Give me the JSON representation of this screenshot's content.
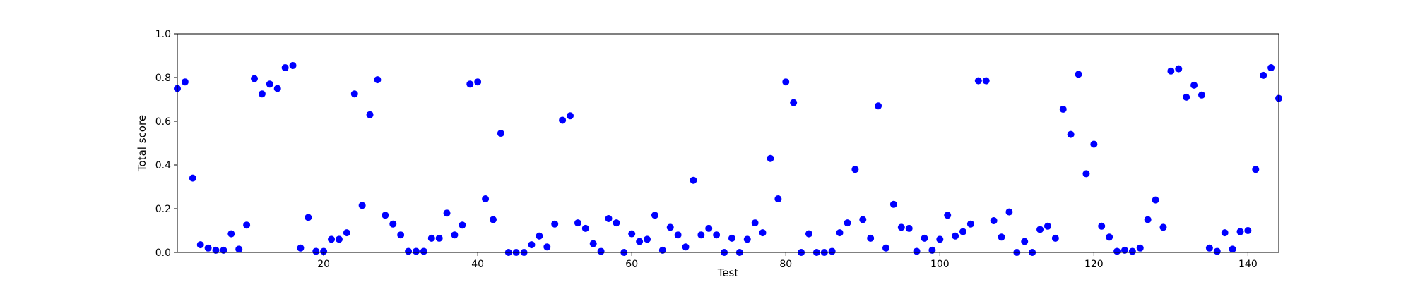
{
  "chart_data": {
    "type": "scatter",
    "title": "",
    "xlabel": "Test",
    "ylabel": "Total score",
    "xlim": [
      1,
      144
    ],
    "ylim": [
      0,
      1.0
    ],
    "x_ticks": [
      20,
      40,
      60,
      80,
      100,
      120,
      140
    ],
    "y_ticks": [
      0.0,
      0.2,
      0.4,
      0.6,
      0.8,
      1.0
    ],
    "x_tick_labels": [
      "20",
      "40",
      "60",
      "80",
      "100",
      "120",
      "140"
    ],
    "y_tick_labels": [
      "0.0",
      "0.2",
      "0.4",
      "0.6",
      "0.8",
      "1.0"
    ],
    "grid": false,
    "marker_color": "#0000ff",
    "x": [
      1,
      2,
      3,
      4,
      5,
      6,
      7,
      8,
      9,
      10,
      11,
      12,
      13,
      14,
      15,
      16,
      17,
      18,
      19,
      20,
      21,
      22,
      23,
      24,
      25,
      26,
      27,
      28,
      29,
      30,
      31,
      32,
      33,
      34,
      35,
      36,
      37,
      38,
      39,
      40,
      41,
      42,
      43,
      44,
      45,
      46,
      47,
      48,
      49,
      50,
      51,
      52,
      53,
      54,
      55,
      56,
      57,
      58,
      59,
      60,
      61,
      62,
      63,
      64,
      65,
      66,
      67,
      68,
      69,
      70,
      71,
      72,
      73,
      74,
      75,
      76,
      77,
      78,
      79,
      80,
      81,
      82,
      83,
      84,
      85,
      86,
      87,
      88,
      89,
      90,
      91,
      92,
      93,
      94,
      95,
      96,
      97,
      98,
      99,
      100,
      101,
      102,
      103,
      104,
      105,
      106,
      107,
      108,
      109,
      110,
      111,
      112,
      113,
      114,
      115,
      116,
      117,
      118,
      119,
      120,
      121,
      122,
      123,
      124,
      125,
      126,
      127,
      128,
      129,
      130,
      131,
      132,
      133,
      134,
      135,
      136,
      137,
      138,
      139,
      140,
      141,
      142,
      143,
      144
    ],
    "y": [
      0.75,
      0.78,
      0.34,
      0.035,
      0.02,
      0.01,
      0.01,
      0.085,
      0.015,
      0.125,
      0.795,
      0.725,
      0.77,
      0.75,
      0.845,
      0.855,
      0.02,
      0.16,
      0.005,
      0.005,
      0.06,
      0.06,
      0.09,
      0.725,
      0.215,
      0.63,
      0.79,
      0.17,
      0.13,
      0.08,
      0.005,
      0.005,
      0.005,
      0.065,
      0.065,
      0.18,
      0.08,
      0.125,
      0.77,
      0.78,
      0.245,
      0.15,
      0.545,
      0.0,
      0.0,
      0.0,
      0.035,
      0.075,
      0.025,
      0.13,
      0.605,
      0.625,
      0.135,
      0.11,
      0.04,
      0.005,
      0.155,
      0.135,
      0.0,
      0.085,
      0.05,
      0.06,
      0.17,
      0.01,
      0.115,
      0.08,
      0.025,
      0.33,
      0.08,
      0.11,
      0.08,
      0.0,
      0.065,
      0.0,
      0.06,
      0.135,
      0.09,
      0.43,
      0.245,
      0.78,
      0.685,
      0.0,
      0.085,
      0.0,
      0.0,
      0.005,
      0.09,
      0.135,
      0.38,
      0.15,
      0.065,
      0.67,
      0.02,
      0.22,
      0.115,
      0.11,
      0.005,
      0.065,
      0.01,
      0.06,
      0.17,
      0.075,
      0.095,
      0.13,
      0.785,
      0.785,
      0.145,
      0.07,
      0.185,
      0.0,
      0.05,
      0.0,
      0.105,
      0.12,
      0.065,
      0.655,
      0.54,
      0.815,
      0.36,
      0.495,
      0.12,
      0.07,
      0.005,
      0.01,
      0.005,
      0.02,
      0.15,
      0.24,
      0.115,
      0.83,
      0.84,
      0.71,
      0.765,
      0.72,
      0.02,
      0.005,
      0.09,
      0.015,
      0.095,
      0.1,
      0.38,
      0.81,
      0.845,
      0.705
    ]
  }
}
